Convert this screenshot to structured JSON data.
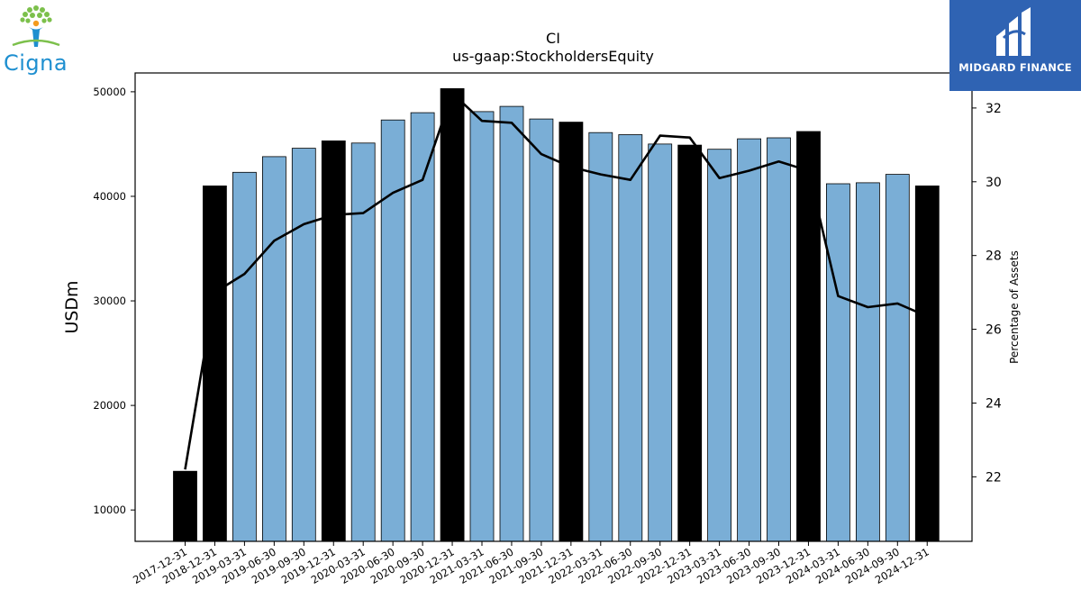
{
  "logos": {
    "company_name": "Cigna",
    "finance_brand": "MIDGARD FINANCE"
  },
  "chart_data": {
    "type": "bar",
    "title": "CI",
    "subtitle": "us-gaap:StockholdersEquity",
    "ylabel": "USDm",
    "ylabel_right": "Percentage of Assets",
    "ylim": [
      7000,
      51800
    ],
    "ylim_right": [
      20.25,
      32.95
    ],
    "yticks": [
      10000,
      20000,
      30000,
      40000,
      50000
    ],
    "yticks_right": [
      22,
      24,
      26,
      28,
      30,
      32
    ],
    "categories": [
      "2017-12-31",
      "2018-12-31",
      "2019-03-31",
      "2019-06-30",
      "2019-09-30",
      "2019-12-31",
      "2020-03-31",
      "2020-06-30",
      "2020-09-30",
      "2020-12-31",
      "2021-03-31",
      "2021-06-30",
      "2021-09-30",
      "2021-12-31",
      "2022-03-31",
      "2022-06-30",
      "2022-09-30",
      "2022-12-31",
      "2023-03-31",
      "2023-06-30",
      "2023-09-30",
      "2023-12-31",
      "2024-03-31",
      "2024-06-30",
      "2024-09-30",
      "2024-12-31"
    ],
    "values": [
      13700,
      41000,
      42300,
      43800,
      44600,
      45300,
      45100,
      47300,
      48000,
      50300,
      48100,
      48600,
      47400,
      47100,
      46100,
      45900,
      45000,
      44900,
      44500,
      45500,
      45600,
      46200,
      41200,
      41300,
      42100,
      41000
    ],
    "annual": [
      true,
      true,
      false,
      false,
      false,
      true,
      false,
      false,
      false,
      true,
      false,
      false,
      false,
      true,
      false,
      false,
      false,
      true,
      false,
      false,
      false,
      true,
      false,
      false,
      false,
      true
    ],
    "line_values": [
      22.2,
      27.0,
      27.5,
      28.4,
      28.85,
      29.1,
      29.15,
      29.7,
      30.05,
      32.4,
      31.65,
      31.6,
      30.75,
      30.4,
      30.2,
      30.05,
      31.25,
      31.2,
      30.1,
      30.3,
      30.55,
      30.3,
      26.9,
      26.6,
      26.7,
      26.35
    ],
    "colors": {
      "annual_bar": "#000000",
      "quarter_bar": "#7aaed6",
      "line": "#000000"
    },
    "grid": false
  }
}
